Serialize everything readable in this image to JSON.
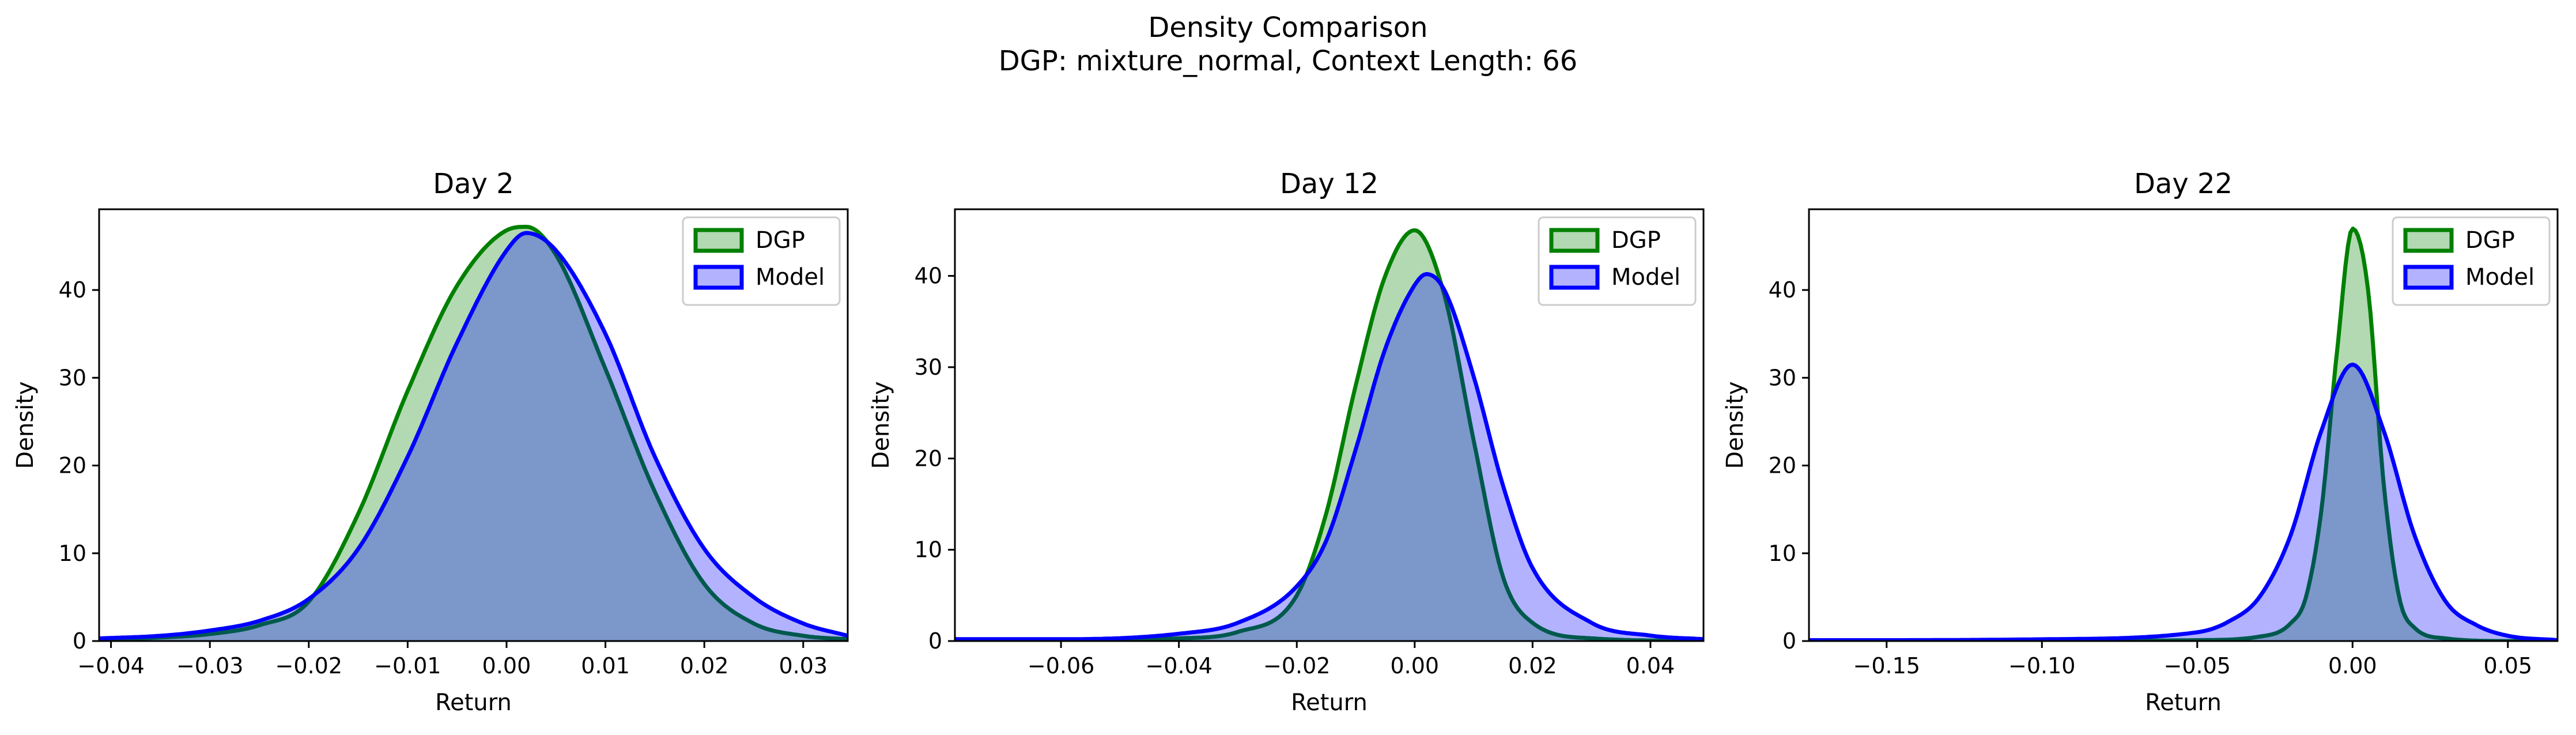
{
  "figure": {
    "title": "Density Comparison",
    "subtitle": "DGP: mixture_normal, Context Length: 66"
  },
  "colors": {
    "dgp_line": "#008000",
    "dgp_fill": "#008000",
    "model_line": "#0000ff",
    "model_fill": "#0000ff",
    "fill_alpha": 0.3
  },
  "chart_data": [
    {
      "type": "area",
      "title": "Day 2",
      "xlabel": "Return",
      "ylabel": "Density",
      "xlim": [
        -0.0412,
        0.0345
      ],
      "ylim": [
        0,
        49.2
      ],
      "xticks": [
        -0.04,
        -0.03,
        -0.02,
        -0.01,
        0.0,
        0.01,
        0.02,
        0.03
      ],
      "xtick_labels": [
        "−0.04",
        "−0.03",
        "−0.02",
        "−0.01",
        "0.00",
        "0.01",
        "0.02",
        "0.03"
      ],
      "yticks": [
        0,
        10,
        20,
        30,
        40
      ],
      "ytick_labels": [
        "0",
        "10",
        "20",
        "30",
        "40"
      ],
      "legend": {
        "position": "upper-right",
        "entries": [
          "DGP",
          "Model"
        ]
      },
      "series": [
        {
          "name": "DGP",
          "x": [
            -0.0412,
            -0.035,
            -0.03,
            -0.025,
            -0.02,
            -0.015,
            -0.01,
            -0.005,
            0.0,
            0.002,
            0.005,
            0.01,
            0.015,
            0.02,
            0.025,
            0.03,
            0.0345
          ],
          "y": [
            0.2,
            0.4,
            0.8,
            1.8,
            4.5,
            14.5,
            28.5,
            40.5,
            46.8,
            47.2,
            44.0,
            31.0,
            17.0,
            6.5,
            2.0,
            0.6,
            0.2
          ]
        },
        {
          "name": "Model",
          "x": [
            -0.0412,
            -0.035,
            -0.03,
            -0.025,
            -0.02,
            -0.015,
            -0.01,
            -0.005,
            0.0,
            0.002,
            0.005,
            0.01,
            0.015,
            0.02,
            0.025,
            0.03,
            0.0345
          ],
          "y": [
            0.3,
            0.6,
            1.2,
            2.3,
            4.8,
            10.5,
            21.0,
            34.0,
            44.5,
            46.5,
            44.5,
            35.0,
            21.0,
            10.5,
            5.0,
            2.0,
            0.6
          ]
        }
      ]
    },
    {
      "type": "area",
      "title": "Day 12",
      "xlabel": "Return",
      "ylabel": "Density",
      "xlim": [
        -0.078,
        0.049
      ],
      "ylim": [
        0,
        47.3
      ],
      "xticks": [
        -0.06,
        -0.04,
        -0.02,
        0.0,
        0.02,
        0.04
      ],
      "xtick_labels": [
        "−0.06",
        "−0.04",
        "−0.02",
        "0.00",
        "0.02",
        "0.04"
      ],
      "yticks": [
        0,
        10,
        20,
        30,
        40
      ],
      "ytick_labels": [
        "0",
        "10",
        "20",
        "30",
        "40"
      ],
      "legend": {
        "position": "upper-right",
        "entries": [
          "DGP",
          "Model"
        ]
      },
      "series": [
        {
          "name": "DGP",
          "x": [
            -0.078,
            -0.06,
            -0.04,
            -0.03,
            -0.02,
            -0.015,
            -0.01,
            -0.005,
            0.0,
            0.005,
            0.01,
            0.015,
            0.02,
            0.03,
            0.049
          ],
          "y": [
            0.2,
            0.1,
            0.3,
            1.0,
            5.0,
            14.0,
            28.0,
            40.0,
            45.0,
            38.0,
            22.0,
            7.0,
            2.0,
            0.3,
            0.0
          ]
        },
        {
          "name": "Model",
          "x": [
            -0.078,
            -0.06,
            -0.04,
            -0.03,
            -0.02,
            -0.015,
            -0.01,
            -0.005,
            0.0,
            0.002,
            0.005,
            0.01,
            0.015,
            0.02,
            0.03,
            0.04,
            0.049
          ],
          "y": [
            0.2,
            0.2,
            0.8,
            2.0,
            6.0,
            11.0,
            21.0,
            32.0,
            39.0,
            40.2,
            38.5,
            29.0,
            17.0,
            8.0,
            2.0,
            0.6,
            0.2
          ]
        }
      ]
    },
    {
      "type": "area",
      "title": "Day 22",
      "xlabel": "Return",
      "ylabel": "Density",
      "xlim": [
        -0.175,
        0.066
      ],
      "ylim": [
        0,
        49.2
      ],
      "xticks": [
        -0.15,
        -0.1,
        -0.05,
        0.0,
        0.05
      ],
      "xtick_labels": [
        "−0.15",
        "−0.10",
        "−0.05",
        "0.00",
        "0.05"
      ],
      "yticks": [
        0,
        10,
        20,
        30,
        40
      ],
      "ytick_labels": [
        "0",
        "10",
        "20",
        "30",
        "40"
      ],
      "legend": {
        "position": "upper-right",
        "entries": [
          "DGP",
          "Model"
        ]
      },
      "series": [
        {
          "name": "DGP",
          "x": [
            -0.175,
            -0.15,
            -0.1,
            -0.05,
            -0.03,
            -0.02,
            -0.015,
            -0.01,
            -0.005,
            0.0,
            0.005,
            0.01,
            0.015,
            0.02,
            0.03,
            0.05,
            0.066
          ],
          "y": [
            0.1,
            0.1,
            0.0,
            0.1,
            0.5,
            2.0,
            5.0,
            15.0,
            33.0,
            47.0,
            40.0,
            18.0,
            5.0,
            1.5,
            0.3,
            0.0,
            0.0
          ]
        },
        {
          "name": "Model",
          "x": [
            -0.175,
            -0.15,
            -0.1,
            -0.05,
            -0.04,
            -0.03,
            -0.02,
            -0.01,
            0.0,
            0.01,
            0.02,
            0.03,
            0.04,
            0.05,
            0.066
          ],
          "y": [
            0.1,
            0.1,
            0.2,
            1.0,
            2.2,
            5.0,
            12.0,
            24.0,
            31.5,
            24.0,
            12.0,
            4.5,
            1.8,
            0.6,
            0.1
          ]
        }
      ]
    }
  ]
}
